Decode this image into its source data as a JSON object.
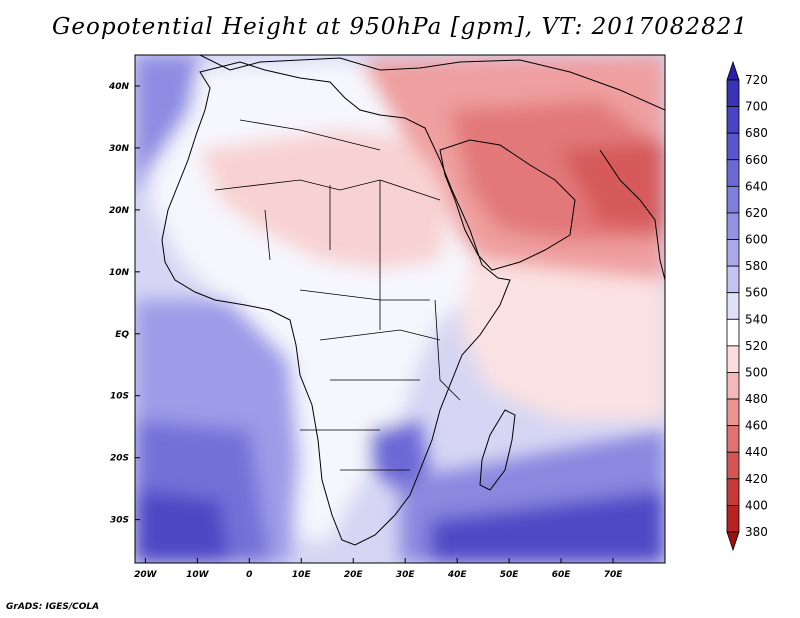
{
  "title": "Geopotential Height at 950hPa [gpm], VT: 2017082821",
  "credit": "GrADS: IGES/COLA",
  "map": {
    "variable": "Geopotential Height",
    "level": "950hPa",
    "units": "gpm",
    "valid_time": "2017082821",
    "region": "Africa and Middle East",
    "lon_range": [
      -22,
      80
    ],
    "lat_range": [
      -37,
      45
    ],
    "lon_labels": [
      "20W",
      "10W",
      "0",
      "10E",
      "20E",
      "30E",
      "40E",
      "50E",
      "60E",
      "70E"
    ],
    "lat_labels": [
      "40N",
      "30N",
      "20N",
      "10N",
      "EQ",
      "10S",
      "20S",
      "30S"
    ]
  },
  "colorbar": {
    "levels": [
      "720",
      "700",
      "680",
      "660",
      "640",
      "620",
      "600",
      "580",
      "560",
      "540",
      "520",
      "500",
      "480",
      "460",
      "440",
      "420",
      "400",
      "380"
    ],
    "colors": [
      "#2b20a8",
      "#3a32b8",
      "#4a44c4",
      "#5a56ce",
      "#6c69d6",
      "#7f7ddd",
      "#9492e4",
      "#aaa9eb",
      "#c4c4f2",
      "#e0e0f8",
      "#ffffff",
      "#fcdcdc",
      "#f4b8b8",
      "#ec9494",
      "#e07272",
      "#d45555",
      "#c83a3a",
      "#b82222",
      "#a01010"
    ]
  }
}
